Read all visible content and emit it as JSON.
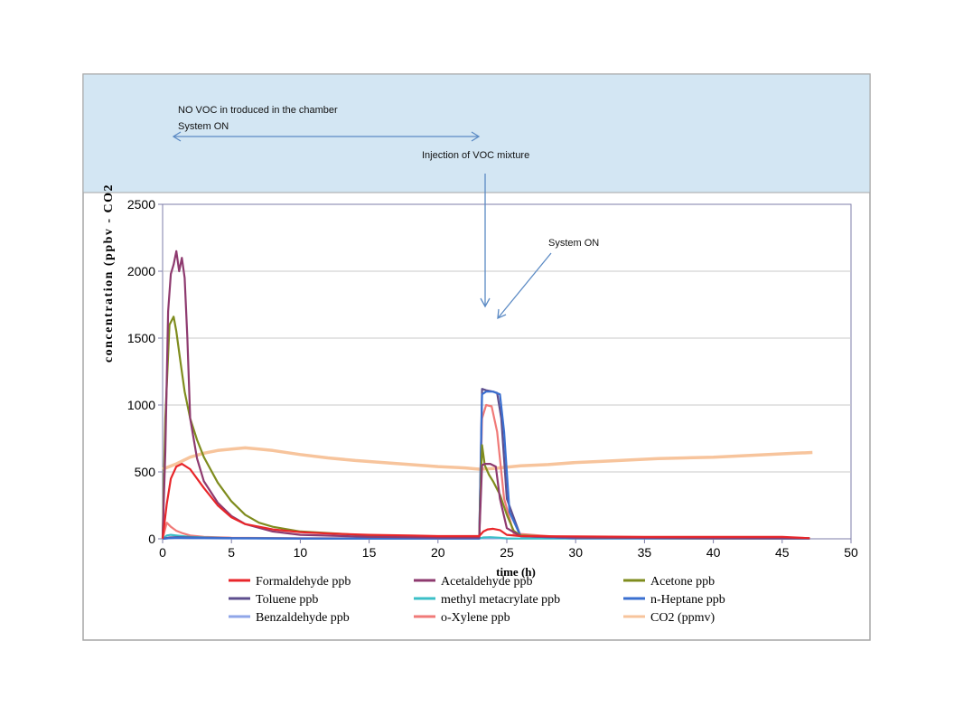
{
  "chart_data": {
    "type": "line",
    "xlabel": "time (h)",
    "ylabel": "concentration (ppbv - CO2",
    "xlim": [
      0,
      50
    ],
    "ylim": [
      0,
      2500
    ],
    "x_ticks": [
      0,
      5,
      10,
      15,
      20,
      25,
      30,
      35,
      40,
      45,
      50
    ],
    "y_ticks": [
      0,
      500,
      1000,
      1500,
      2000,
      2500
    ],
    "grid": "horizontal",
    "legend_position": "bottom",
    "annotations": [
      "NO VOC in troduced in the chamber",
      "System ON",
      "Injection of VOC mixture",
      "System ON"
    ],
    "series": [
      {
        "name": "Formaldehyde ppb",
        "color": "#e8262a",
        "x": [
          0,
          0.3,
          0.6,
          1.0,
          1.4,
          2.0,
          3.0,
          4.0,
          5.0,
          6.0,
          8.0,
          10.0,
          12.0,
          15.0,
          18.0,
          20.0,
          23.0,
          23.3,
          23.6,
          24.0,
          24.5,
          25.0,
          26.0,
          30.0,
          35.0,
          40.0,
          45.0,
          47.0
        ],
        "y": [
          0,
          260,
          450,
          540,
          560,
          520,
          380,
          250,
          160,
          110,
          70,
          50,
          40,
          30,
          25,
          20,
          20,
          55,
          70,
          75,
          65,
          30,
          20,
          18,
          15,
          15,
          15,
          5
        ]
      },
      {
        "name": "Acetaldehyde ppb",
        "color": "#8e3a6f",
        "x": [
          0,
          0.2,
          0.4,
          0.6,
          0.8,
          1.0,
          1.2,
          1.4,
          1.6,
          1.8,
          2.0,
          2.5,
          3.0,
          4.0,
          5.0,
          6.0,
          8.0,
          10.0,
          15.0,
          20.0,
          23.0,
          23.2,
          23.4,
          23.8,
          24.2,
          24.5,
          25.0,
          26.0,
          30.0,
          40.0,
          47.0
        ],
        "y": [
          0,
          650,
          1700,
          1980,
          2050,
          2150,
          2000,
          2100,
          1950,
          1500,
          900,
          600,
          430,
          270,
          170,
          110,
          55,
          30,
          15,
          10,
          10,
          550,
          560,
          560,
          540,
          300,
          80,
          20,
          10,
          5,
          5
        ]
      },
      {
        "name": "Acetone ppb",
        "color": "#7f8c1e",
        "x": [
          0,
          0.2,
          0.5,
          0.8,
          1.0,
          1.3,
          1.6,
          2.0,
          2.5,
          3.0,
          4.0,
          5.0,
          6.0,
          7.0,
          8.0,
          10.0,
          15.0,
          20.0,
          23.0,
          23.2,
          23.4,
          23.7,
          24.0,
          24.5,
          25.0,
          25.5,
          26.0,
          30.0,
          40.0,
          47.0
        ],
        "y": [
          0,
          900,
          1600,
          1660,
          1550,
          1320,
          1100,
          900,
          740,
          610,
          420,
          280,
          180,
          120,
          90,
          55,
          25,
          15,
          15,
          700,
          550,
          480,
          430,
          330,
          180,
          60,
          25,
          10,
          5,
          5
        ]
      },
      {
        "name": "Toluene ppb",
        "color": "#5d4e8e",
        "x": [
          0,
          0.5,
          1.0,
          2.0,
          3.0,
          5.0,
          10.0,
          20.0,
          23.0,
          23.2,
          23.5,
          24.0,
          24.3,
          24.6,
          25.0,
          26.0,
          30.0,
          47.0
        ],
        "y": [
          0,
          10,
          12,
          10,
          8,
          5,
          3,
          2,
          2,
          1120,
          1110,
          1100,
          1090,
          900,
          300,
          20,
          5,
          2
        ]
      },
      {
        "name": "methyl metacrylate ppb",
        "color": "#3bbfc7",
        "x": [
          0,
          0.3,
          0.6,
          1.0,
          2.0,
          3.0,
          5.0,
          10.0,
          20.0,
          23.0,
          23.3,
          23.8,
          24.5,
          25.0,
          30.0,
          47.0
        ],
        "y": [
          0,
          25,
          30,
          25,
          15,
          10,
          5,
          3,
          2,
          2,
          10,
          12,
          8,
          3,
          2,
          2
        ]
      },
      {
        "name": "n-Heptane ppb",
        "color": "#3a6fd0",
        "x": [
          0,
          0.5,
          1.0,
          2.0,
          5.0,
          10.0,
          20.0,
          23.0,
          23.2,
          23.5,
          24.0,
          24.5,
          24.8,
          25.2,
          26.0,
          30.0,
          47.0
        ],
        "y": [
          0,
          5,
          8,
          6,
          4,
          3,
          2,
          2,
          1080,
          1100,
          1100,
          1080,
          800,
          200,
          20,
          5,
          2
        ]
      },
      {
        "name": "Benzaldehyde ppb",
        "color": "#8fa6e8",
        "x": [
          0,
          0.5,
          1.0,
          2.0,
          5.0,
          10.0,
          20.0,
          23.0,
          23.3,
          24.0,
          25.0,
          30.0,
          47.0
        ],
        "y": [
          0,
          5,
          6,
          5,
          3,
          2,
          2,
          2,
          6,
          6,
          3,
          2,
          2
        ]
      },
      {
        "name": "o-Xylene ppb",
        "color": "#f07a78",
        "x": [
          0,
          0.3,
          0.6,
          1.0,
          1.5,
          2.0,
          3.0,
          5.0,
          10.0,
          20.0,
          23.0,
          23.2,
          23.5,
          23.9,
          24.3,
          24.8,
          25.5,
          30.0,
          47.0
        ],
        "y": [
          0,
          120,
          90,
          60,
          40,
          25,
          15,
          8,
          5,
          3,
          3,
          900,
          1000,
          990,
          800,
          300,
          40,
          5,
          3
        ]
      },
      {
        "name": "CO2 (ppmv)",
        "color": "#f7c49c",
        "x": [
          0,
          1.0,
          2.0,
          3.0,
          4.0,
          5.0,
          6.0,
          7.0,
          8.0,
          10.0,
          12.0,
          14.0,
          16.0,
          18.0,
          20.0,
          22.0,
          23.0,
          24.0,
          25.0,
          26.0,
          28.0,
          30.0,
          32.0,
          34.0,
          36.0,
          38.0,
          40.0,
          42.0,
          44.0,
          46.0,
          47.2
        ],
        "y": [
          520,
          560,
          610,
          640,
          660,
          670,
          680,
          670,
          660,
          630,
          605,
          585,
          570,
          555,
          540,
          530,
          520,
          525,
          535,
          545,
          555,
          570,
          580,
          590,
          600,
          605,
          610,
          620,
          630,
          640,
          645
        ]
      }
    ]
  }
}
